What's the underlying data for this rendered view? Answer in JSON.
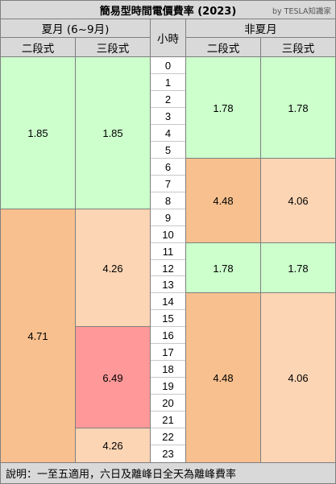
{
  "title": "簡易型時間電價費率 (2023)",
  "credit": "by TESLA知識家",
  "headers": {
    "summer": "夏月 (6~9月)",
    "hour": "小時",
    "non_summer": "非夏月",
    "two_stage": "二段式",
    "three_stage": "三段式"
  },
  "hours": [
    "0",
    "1",
    "2",
    "3",
    "4",
    "5",
    "6",
    "7",
    "8",
    "9",
    "10",
    "11",
    "12",
    "13",
    "14",
    "15",
    "16",
    "17",
    "18",
    "19",
    "20",
    "21",
    "22",
    "23"
  ],
  "colors": {
    "green": "#ccffcc",
    "orange": "#f8c08e",
    "peach": "#fcd5b4",
    "red": "#ff9999"
  },
  "columns": [
    {
      "key": "summer_two",
      "blocks": [
        {
          "start": 0,
          "end": 9,
          "value": "1.85",
          "color": "green"
        },
        {
          "start": 9,
          "end": 24,
          "value": "4.71",
          "color": "orange"
        }
      ]
    },
    {
      "key": "summer_three",
      "blocks": [
        {
          "start": 0,
          "end": 9,
          "value": "1.85",
          "color": "green"
        },
        {
          "start": 9,
          "end": 16,
          "value": "4.26",
          "color": "peach"
        },
        {
          "start": 16,
          "end": 22,
          "value": "6.49",
          "color": "red"
        },
        {
          "start": 22,
          "end": 24,
          "value": "4.26",
          "color": "peach"
        }
      ]
    },
    {
      "key": "nonsummer_two",
      "blocks": [
        {
          "start": 0,
          "end": 6,
          "value": "1.78",
          "color": "green"
        },
        {
          "start": 6,
          "end": 11,
          "value": "4.48",
          "color": "orange"
        },
        {
          "start": 11,
          "end": 14,
          "value": "1.78",
          "color": "green"
        },
        {
          "start": 14,
          "end": 24,
          "value": "4.48",
          "color": "orange"
        }
      ]
    },
    {
      "key": "nonsummer_three",
      "blocks": [
        {
          "start": 0,
          "end": 6,
          "value": "1.78",
          "color": "green"
        },
        {
          "start": 6,
          "end": 11,
          "value": "4.06",
          "color": "peach"
        },
        {
          "start": 11,
          "end": 14,
          "value": "1.78",
          "color": "green"
        },
        {
          "start": 14,
          "end": 24,
          "value": "4.06",
          "color": "peach"
        }
      ]
    }
  ],
  "footer": "說明：一至五適用，六日及離峰日全天為離峰費率"
}
